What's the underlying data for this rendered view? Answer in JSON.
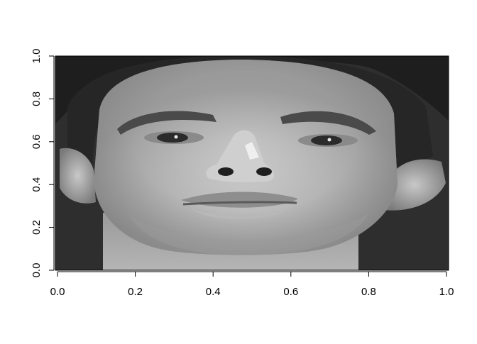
{
  "chart_data": {
    "type": "heatmap",
    "title": "",
    "xlabel": "",
    "ylabel": "",
    "xlim": [
      0,
      1
    ],
    "ylim": [
      0,
      1
    ],
    "x_ticks": [
      0,
      0.2,
      0.4,
      0.6,
      0.8,
      1
    ],
    "x_tick_labels": [
      "0.0",
      "0.2",
      "0.4",
      "0.6",
      "0.8",
      "1.0"
    ],
    "y_ticks": [
      0,
      0.2,
      0.4,
      0.6,
      0.8,
      1
    ],
    "y_tick_labels": [
      "0.0",
      "0.2",
      "0.4",
      "0.6",
      "0.8",
      "1.0"
    ],
    "colormap": "grayscale",
    "image_content": "grayscale photograph of a face"
  }
}
